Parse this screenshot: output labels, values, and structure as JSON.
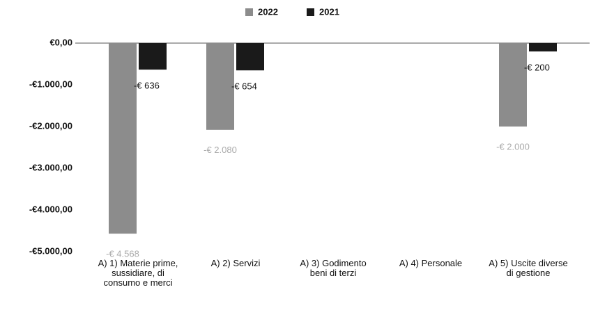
{
  "chart_data": {
    "type": "bar",
    "categories": [
      "A) 1) Materie prime, sussidiare, di consumo e merci",
      "A) 2) Servizi",
      "A) 3) Godimento beni di terzi",
      "A) 4) Personale",
      "A) 5) Uscite diverse di gestione"
    ],
    "series": [
      {
        "name": "2022",
        "color": "#8c8c8c",
        "values": [
          -4568,
          -2080,
          null,
          null,
          -2000
        ],
        "value_labels": [
          "-€ 4.568",
          "-€ 2.080",
          null,
          null,
          "-€ 2.000"
        ]
      },
      {
        "name": "2021",
        "color": "#1a1a1a",
        "values": [
          -636,
          -654,
          null,
          null,
          -200
        ],
        "value_labels": [
          "-€ 636",
          "-€ 654",
          null,
          null,
          "-€ 200"
        ]
      }
    ],
    "ylim": [
      -5000,
      0
    ],
    "yticks": [
      {
        "value": 0,
        "label": "€0,00"
      },
      {
        "value": -1000,
        "label": "-€1.000,00"
      },
      {
        "value": -2000,
        "label": "-€2.000,00"
      },
      {
        "value": -3000,
        "label": "-€3.000,00"
      },
      {
        "value": -4000,
        "label": "-€4.000,00"
      },
      {
        "value": -5000,
        "label": "-€5.000,00"
      }
    ],
    "grid": false,
    "legend": "top"
  }
}
